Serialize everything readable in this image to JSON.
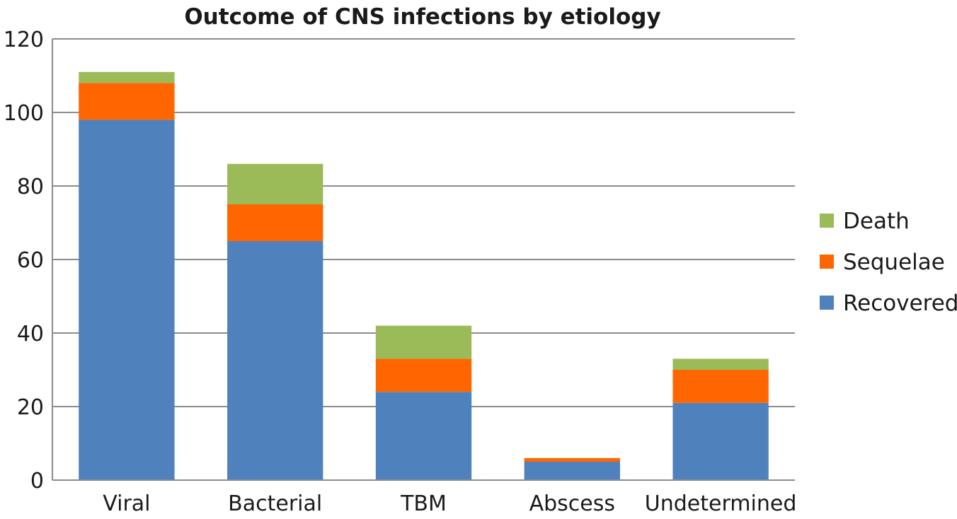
{
  "chart_data": {
    "type": "bar",
    "stacked": true,
    "title": "Outcome of CNS infections by etiology",
    "xlabel": "",
    "ylabel": "",
    "categories": [
      "Viral",
      "Bacterial",
      "TBM",
      "Abscess",
      "Undetermined"
    ],
    "series": [
      {
        "name": "Recovered",
        "color": "#4f81bd",
        "values": [
          98,
          65,
          24,
          5,
          21
        ]
      },
      {
        "name": "Sequelae",
        "color": "#ff6600",
        "values": [
          10,
          10,
          9,
          1,
          9
        ]
      },
      {
        "name": "Death",
        "color": "#9bbb59",
        "values": [
          3,
          11,
          9,
          0,
          3
        ]
      }
    ],
    "ylim": [
      0,
      120
    ],
    "yticks": [
      0,
      20,
      40,
      60,
      80,
      100,
      120
    ],
    "grid": true,
    "legend": {
      "position": "right",
      "order": [
        "Death",
        "Sequelae",
        "Recovered"
      ]
    }
  }
}
